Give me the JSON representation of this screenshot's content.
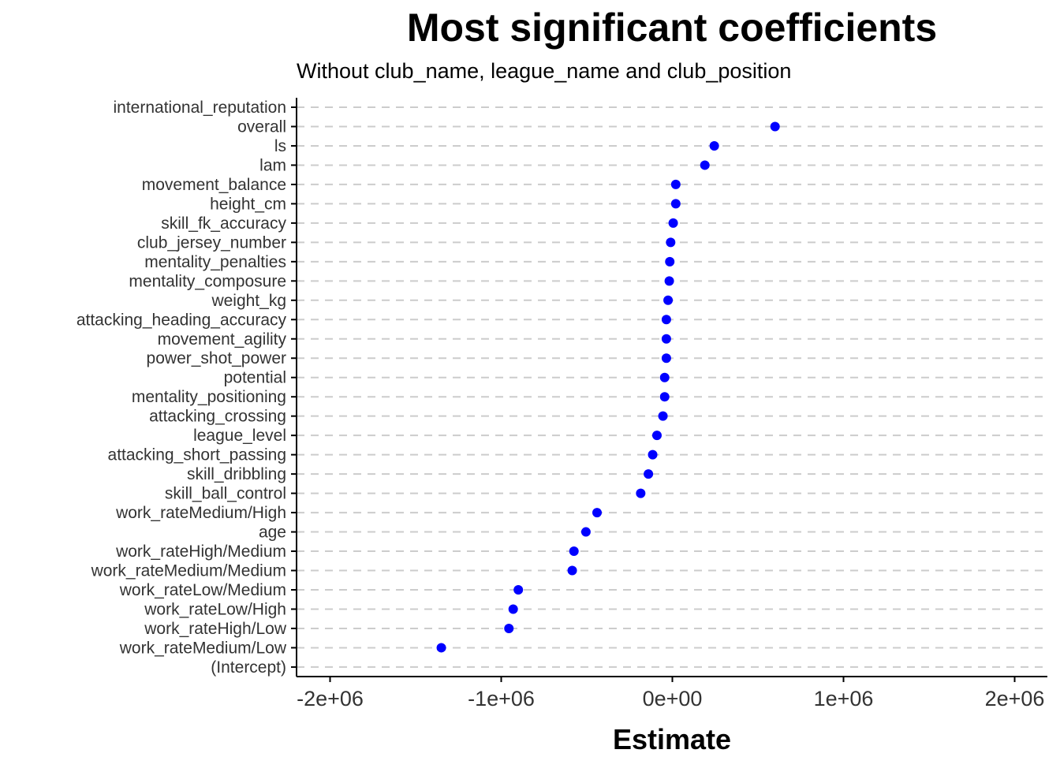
{
  "chart_data": {
    "type": "scatter",
    "title": "Most significant coefficients",
    "subtitle": "Without club_name, league_name and club_position",
    "xlabel": "Estimate",
    "ylabel": "",
    "xlim": [
      -2200000,
      2200000
    ],
    "x_ticks": [
      -2000000,
      -1000000,
      0,
      1000000,
      2000000
    ],
    "x_tick_labels": [
      "-2e+06",
      "-1e+06",
      "0e+00",
      "1e+06",
      "2e+06"
    ],
    "grid": "horizontal-dashed",
    "point_color": "#0000ff",
    "categories": [
      "international_reputation",
      "overall",
      "ls",
      "lam",
      "movement_balance",
      "height_cm",
      "skill_fk_accuracy",
      "club_jersey_number",
      "mentality_penalties",
      "mentality_composure",
      "weight_kg",
      "attacking_heading_accuracy",
      "movement_agility",
      "power_shot_power",
      "potential",
      "mentality_positioning",
      "attacking_crossing",
      "league_level",
      "attacking_short_passing",
      "skill_dribbling",
      "skill_ball_control",
      "work_rateMedium/High",
      "age",
      "work_rateHigh/Medium",
      "work_rateMedium/Medium",
      "work_rateLow/Medium",
      "work_rateLow/High",
      "work_rateHigh/Low",
      "work_rateMedium/Low",
      "(Intercept)"
    ],
    "values": [
      null,
      600000,
      245000,
      190000,
      20000,
      20000,
      5000,
      -10000,
      -15000,
      -18000,
      -25000,
      -35000,
      -35000,
      -35000,
      -45000,
      -45000,
      -55000,
      -90000,
      -115000,
      -140000,
      -185000,
      -440000,
      -505000,
      -575000,
      -585000,
      -900000,
      -930000,
      -955000,
      -1350000,
      null
    ]
  }
}
